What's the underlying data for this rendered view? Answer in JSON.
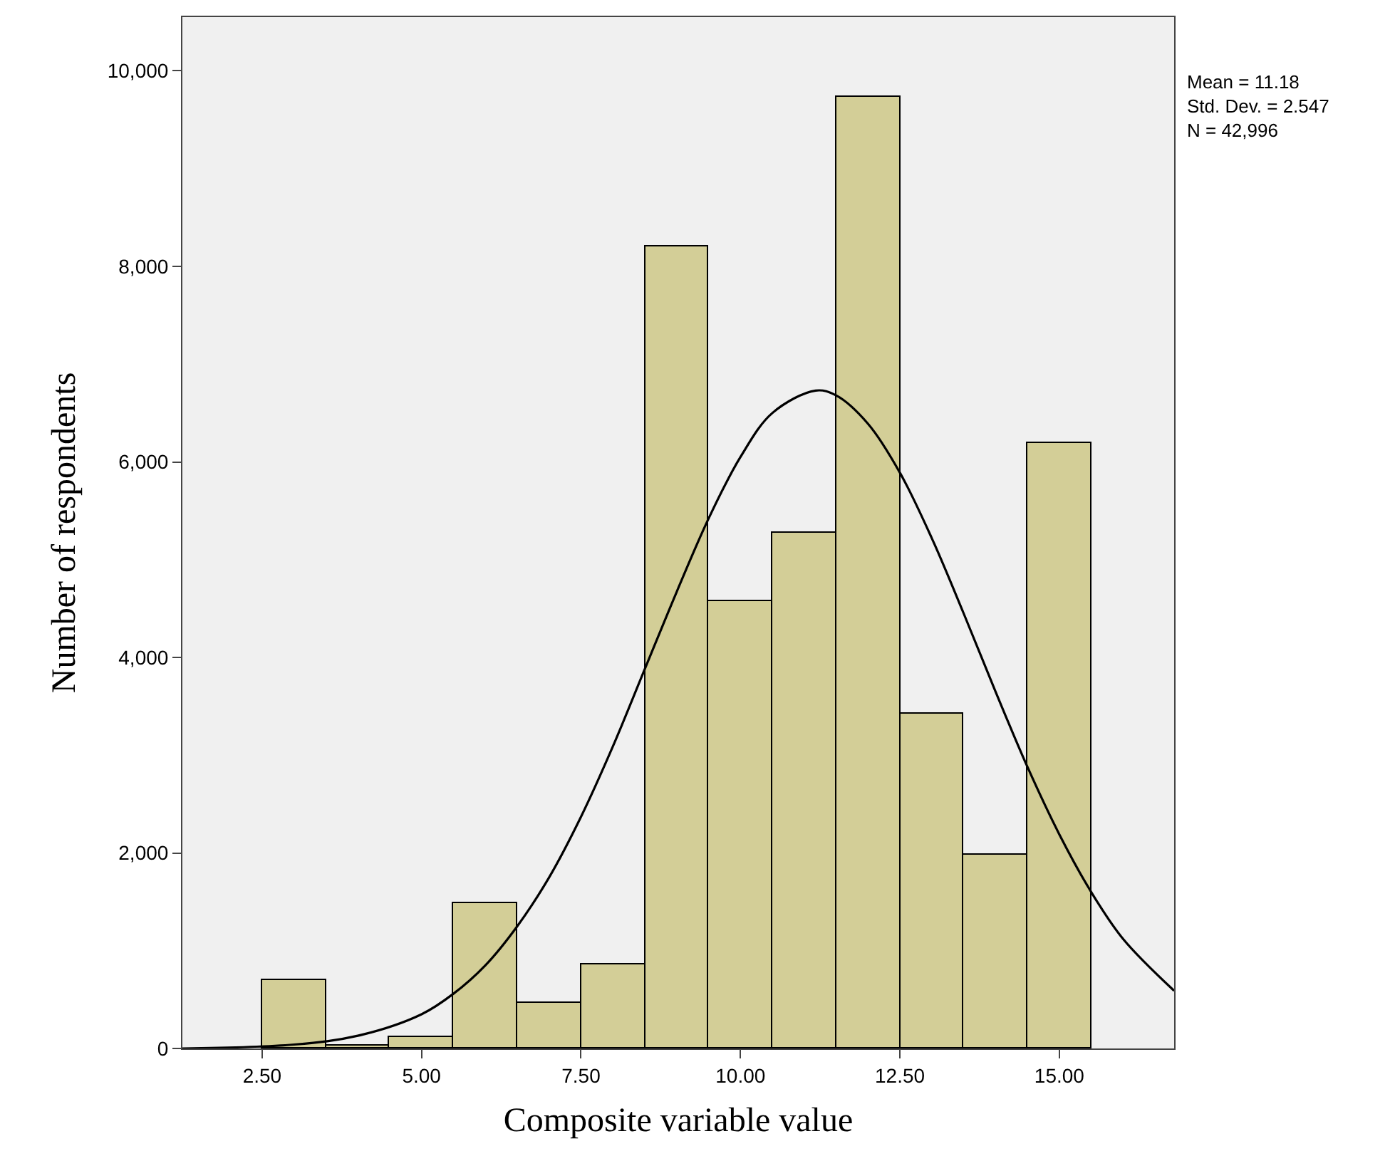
{
  "chart_data": {
    "type": "histogram",
    "xlabel": "Composite variable value",
    "ylabel": "Number of respondents",
    "annotations": [
      "Mean = 11.18\nStd. Dev. = 2.547\nN = 42,996"
    ],
    "bins": [
      2.5,
      3.5,
      4.5,
      5.5,
      6.5,
      7.5,
      8.5,
      9.5,
      10.5,
      11.5,
      12.5,
      13.5,
      14.5,
      15.5
    ],
    "series": [
      {
        "color": "#d3ce97",
        "values": [
          700,
          30,
          120,
          1480,
          470,
          860,
          8200,
          4570,
          5280,
          9740,
          3420,
          1980,
          6200
        ]
      },
      {
        "type": "line",
        "color": "#000000",
        "x": [
          1.25,
          3,
          4,
          5,
          5.5,
          6,
          6.5,
          7,
          7.5,
          8,
          8.5,
          9,
          9.5,
          10,
          10.5,
          11.18,
          11.5,
          12,
          12.5,
          13,
          13.5,
          14,
          14.5,
          15,
          15.5,
          16,
          16.8
        ],
        "values": [
          0,
          40,
          130,
          350,
          560,
          850,
          1250,
          1750,
          2370,
          3090,
          3880,
          4670,
          5420,
          6050,
          6500,
          6730,
          6680,
          6390,
          5890,
          5220,
          4450,
          3650,
          2880,
          2190,
          1600,
          1120,
          590
        ]
      }
    ],
    "xlim": [
      1.25,
      16.8
    ],
    "ylim": [
      0,
      10550
    ],
    "xticks": [
      {
        "value": 2.5,
        "label": "2.50"
      },
      {
        "value": 5,
        "label": "5.00"
      },
      {
        "value": 7.5,
        "label": "7.50"
      },
      {
        "value": 10,
        "label": "10.00"
      },
      {
        "value": 12.5,
        "label": "12.50"
      },
      {
        "value": 15,
        "label": "15.00"
      }
    ],
    "yticks": [
      0,
      {
        "value": 2000,
        "label": "2,000"
      },
      {
        "value": 4000,
        "label": "4,000"
      },
      {
        "value": 6000,
        "label": "6,000"
      },
      {
        "value": 8000,
        "label": "8,000"
      },
      {
        "value": 10000,
        "label": "10,000"
      }
    ],
    "grid": false,
    "marker": "none",
    "line_style": "solid"
  }
}
